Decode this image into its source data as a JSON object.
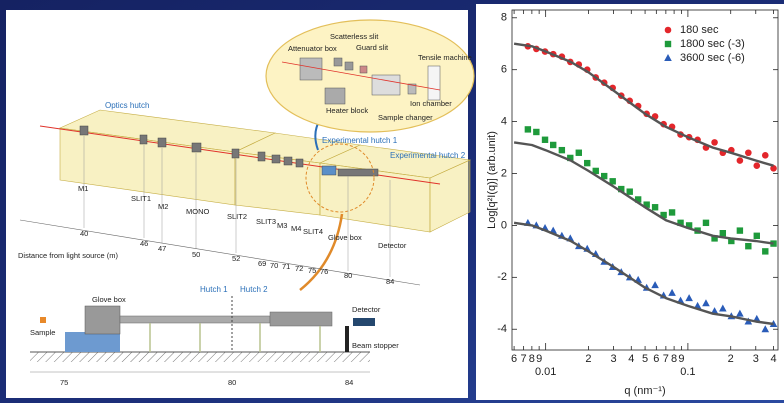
{
  "diagram": {
    "main": {
      "hutches": [
        "Optics hutch",
        "Experimental hutch 1",
        "Experimental hutch 2"
      ],
      "components": [
        "M1",
        "SLIT1",
        "M2",
        "MONO",
        "SLIT2",
        "SLIT3",
        "M3",
        "M4",
        "SLIT4",
        "Glove box",
        "Detector"
      ],
      "distances": [
        40,
        46,
        47,
        50,
        52,
        69,
        70,
        71,
        72,
        75,
        76,
        80,
        84
      ],
      "distance_axis_label": "Distance from light source (m)"
    },
    "inset": {
      "labels": [
        "Attenuator box",
        "Scatterless slit",
        "Guard slit",
        "Tensile machine",
        "Heater block",
        "Sample changer",
        "Ion chamber"
      ]
    },
    "side_view": {
      "labels": [
        "Glove box",
        "Hutch 1",
        "Hutch 2",
        "Detector",
        "Sample",
        "Beam stopper"
      ],
      "scale": [
        75,
        80,
        84
      ]
    }
  },
  "chart_data": {
    "type": "scatter",
    "xlabel": "q (nm⁻¹)",
    "ylabel": "Log[q²I(q)]  (arb.unit)",
    "xscale": "log",
    "xlim": [
      0.0058,
      0.43
    ],
    "ylim": [
      -4.8,
      8.3
    ],
    "xticks": [
      {
        "value": 0.006,
        "label": "6"
      },
      {
        "value": 0.007,
        "label": "7"
      },
      {
        "value": 0.008,
        "label": "8"
      },
      {
        "value": 0.009,
        "label": "9"
      },
      0.01,
      {
        "value": 0.02,
        "label": "2"
      },
      {
        "value": 0.03,
        "label": "3"
      },
      {
        "value": 0.04,
        "label": "4"
      },
      {
        "value": 0.05,
        "label": "5"
      },
      {
        "value": 0.06,
        "label": "6"
      },
      {
        "value": 0.07,
        "label": "7"
      },
      {
        "value": 0.08,
        "label": "8"
      },
      {
        "value": 0.09,
        "label": "9"
      },
      0.1,
      {
        "value": 0.2,
        "label": "2"
      },
      {
        "value": 0.3,
        "label": "3"
      },
      {
        "value": 0.4,
        "label": "4"
      }
    ],
    "yticks": [
      -4,
      -2,
      0,
      2,
      4,
      6,
      8
    ],
    "legend": "top-right",
    "x": [
      0.0075,
      0.0086,
      0.0099,
      0.0113,
      0.013,
      0.0149,
      0.0171,
      0.0196,
      0.0225,
      0.0258,
      0.0296,
      0.034,
      0.039,
      0.0447,
      0.0513,
      0.0588,
      0.0675,
      0.0774,
      0.0888,
      0.102,
      0.117,
      0.134,
      0.154,
      0.176,
      0.202,
      0.232,
      0.266,
      0.305,
      0.35,
      0.4
    ],
    "series": [
      {
        "name": "180 sec",
        "color": "#e3262b",
        "marker": "circle",
        "values": [
          6.9,
          6.8,
          6.7,
          6.6,
          6.5,
          6.3,
          6.2,
          6.0,
          5.7,
          5.5,
          5.3,
          5.0,
          4.8,
          4.6,
          4.3,
          4.2,
          3.9,
          3.8,
          3.5,
          3.4,
          3.3,
          3.0,
          3.2,
          2.8,
          2.9,
          2.5,
          2.8,
          2.3,
          2.7,
          2.2
        ]
      },
      {
        "name": "1800 sec (-3)",
        "color": "#1e9a3b",
        "marker": "square",
        "values": [
          3.7,
          3.6,
          3.3,
          3.1,
          2.9,
          2.6,
          2.8,
          2.4,
          2.1,
          1.9,
          1.7,
          1.4,
          1.3,
          1.0,
          0.8,
          0.7,
          0.4,
          0.5,
          0.1,
          0.0,
          -0.2,
          0.1,
          -0.5,
          -0.3,
          -0.6,
          -0.2,
          -0.8,
          -0.4,
          -1.0,
          -0.7
        ]
      },
      {
        "name": "3600 sec (-6)",
        "color": "#2a5cb8",
        "marker": "triangle",
        "values": [
          0.1,
          0.0,
          -0.1,
          -0.2,
          -0.4,
          -0.5,
          -0.8,
          -0.9,
          -1.1,
          -1.4,
          -1.6,
          -1.8,
          -2.0,
          -2.1,
          -2.4,
          -2.3,
          -2.7,
          -2.6,
          -2.9,
          -2.8,
          -3.1,
          -3.0,
          -3.3,
          -3.2,
          -3.5,
          -3.4,
          -3.7,
          -3.6,
          -4.0,
          -3.8
        ]
      }
    ],
    "fit_x": [
      0.006,
      0.008,
      0.01,
      0.015,
      0.02,
      0.03,
      0.05,
      0.07,
      0.1,
      0.15,
      0.2,
      0.3,
      0.4
    ],
    "fits": [
      {
        "color": "#555555",
        "values": [
          7.0,
          6.9,
          6.7,
          6.3,
          5.9,
          5.2,
          4.3,
          3.8,
          3.4,
          3.0,
          2.8,
          2.5,
          2.3
        ]
      },
      {
        "color": "#555555",
        "values": [
          3.2,
          3.1,
          2.9,
          2.5,
          2.1,
          1.5,
          0.7,
          0.2,
          -0.1,
          -0.4,
          -0.5,
          -0.6,
          -0.7
        ]
      },
      {
        "color": "#555555",
        "values": [
          0.1,
          0.0,
          -0.2,
          -0.6,
          -1.0,
          -1.6,
          -2.4,
          -2.8,
          -3.1,
          -3.4,
          -3.5,
          -3.7,
          -3.8
        ]
      }
    ]
  }
}
